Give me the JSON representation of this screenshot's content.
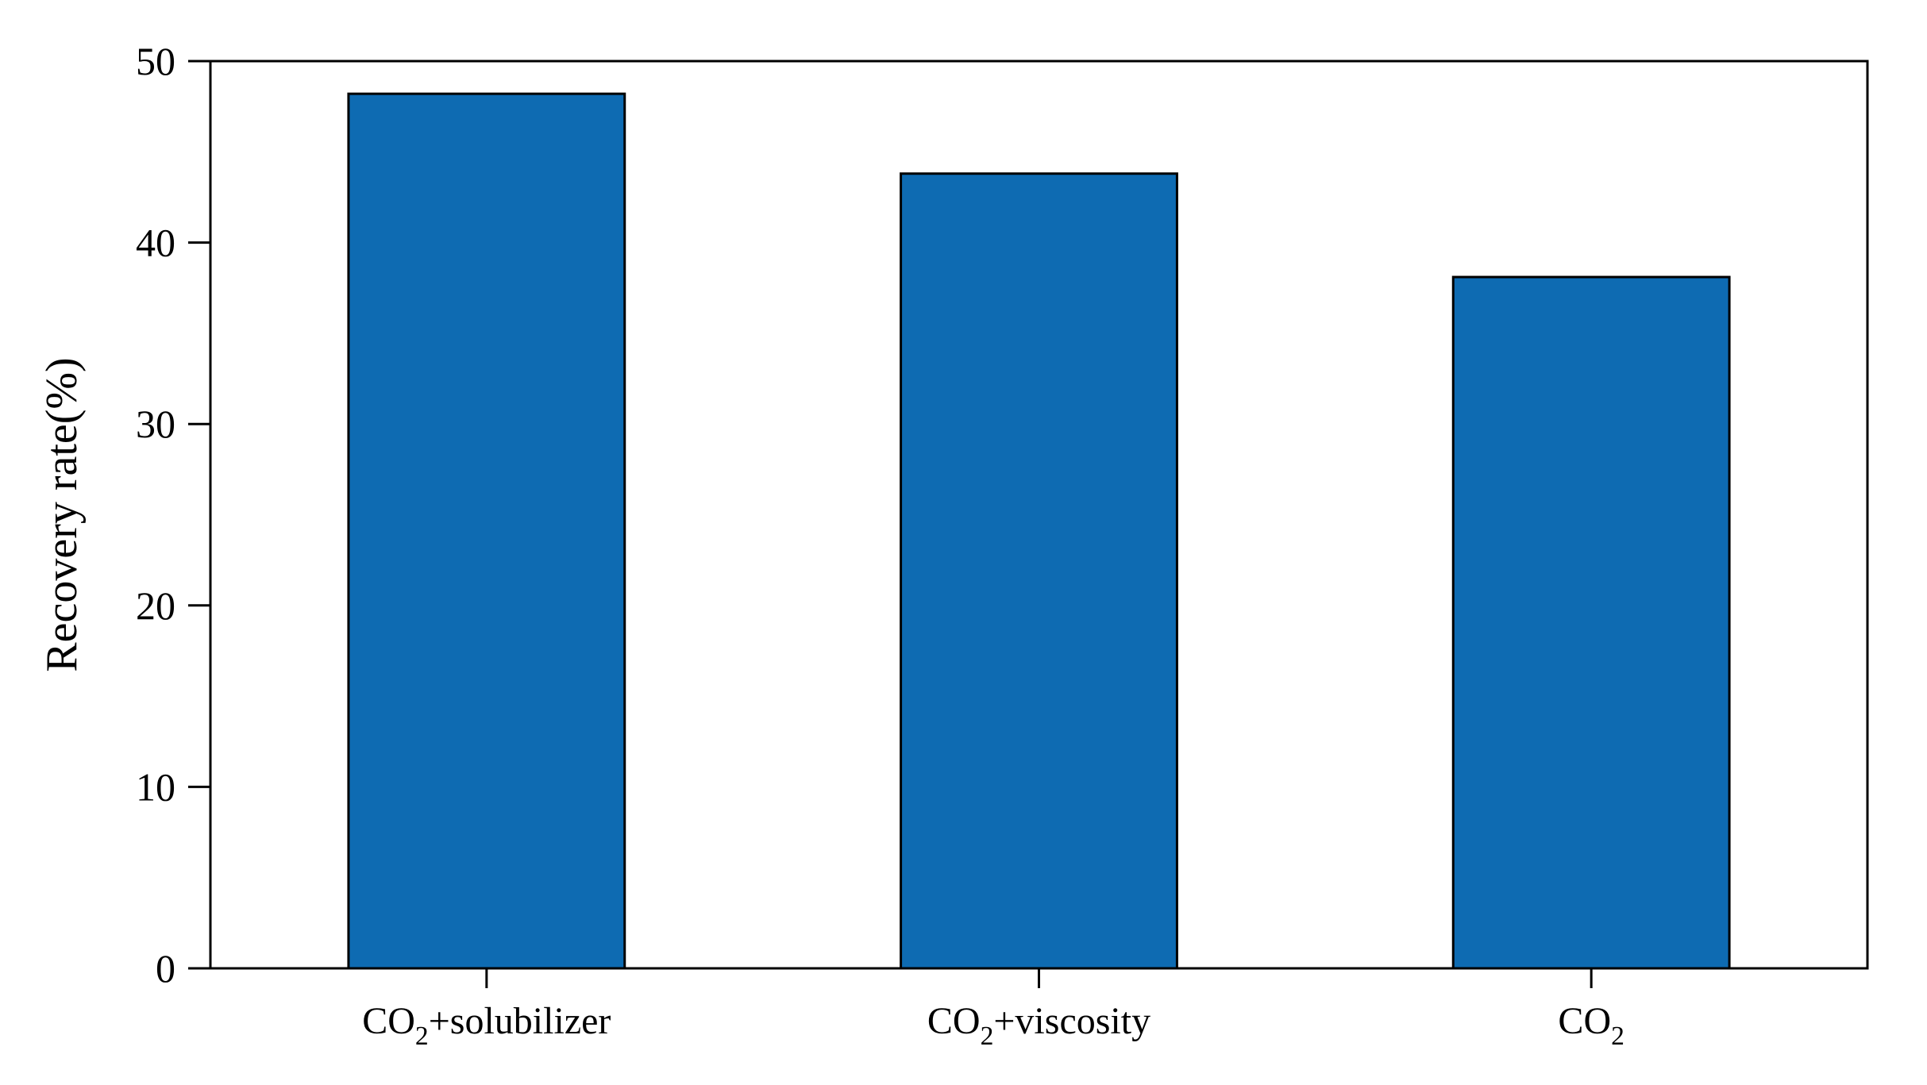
{
  "figure": {
    "background": "#ffffff",
    "axis_color": "#000000",
    "text_color": "#000000"
  },
  "chart_data": {
    "type": "bar",
    "title": "",
    "xlabel": "",
    "ylabel": "Recovery rate(%)",
    "ylim": [
      0,
      50
    ],
    "yticks": [
      0,
      10,
      20,
      30,
      40,
      50
    ],
    "ytick_labels": [
      "0",
      "10",
      "20",
      "30",
      "40",
      "50"
    ],
    "grid": false,
    "legend": null,
    "bar_color": "#0e6bb2",
    "bar_edge_color": "#000000",
    "categories": [
      "CO₂+solubilizer",
      "CO₂+viscosity",
      "CO₂"
    ],
    "categories_rich": [
      {
        "segments": [
          {
            "t": "CO",
            "sub": false
          },
          {
            "t": "2",
            "sub": true
          },
          {
            "t": "+solubilizer",
            "sub": false
          }
        ]
      },
      {
        "segments": [
          {
            "t": "CO",
            "sub": false
          },
          {
            "t": "2",
            "sub": true
          },
          {
            "t": "+viscosity",
            "sub": false
          }
        ]
      },
      {
        "segments": [
          {
            "t": "CO",
            "sub": false
          },
          {
            "t": "2",
            "sub": true
          }
        ]
      }
    ],
    "values": [
      48.2,
      43.8,
      38.1
    ]
  }
}
